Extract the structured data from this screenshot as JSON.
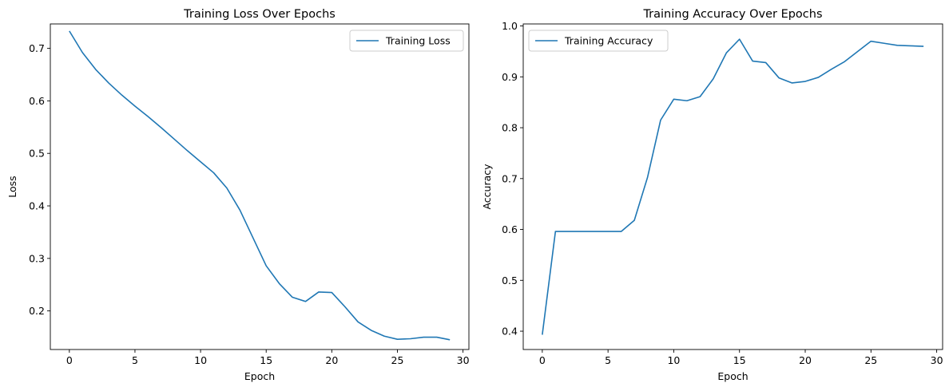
{
  "chart_data": [
    {
      "type": "line",
      "title": "Training Loss Over Epochs",
      "xlabel": "Epoch",
      "ylabel": "Loss",
      "xlim": [
        -1.45,
        30.45
      ],
      "ylim": [
        0.1265,
        0.7465
      ],
      "xticks": [
        0,
        5,
        10,
        15,
        20,
        25,
        30
      ],
      "xtick_labels": [
        "0",
        "5",
        "10",
        "15",
        "20",
        "25",
        "30"
      ],
      "yticks": [
        0.2,
        0.3,
        0.4,
        0.5,
        0.6,
        0.7
      ],
      "ytick_labels": [
        "0.2",
        "0.3",
        "0.4",
        "0.5",
        "0.6",
        "0.7"
      ],
      "grid": false,
      "legend": "upper right",
      "color": "#1f77b4",
      "x": [
        0,
        1,
        2,
        3,
        4,
        5,
        6,
        7,
        8,
        9,
        10,
        11,
        12,
        13,
        14,
        15,
        16,
        17,
        18,
        19,
        20,
        21,
        22,
        23,
        24,
        25,
        26,
        27,
        28,
        29
      ],
      "series": [
        {
          "name": "Training Loss",
          "values": [
            0.733,
            0.692,
            0.66,
            0.634,
            0.611,
            0.59,
            0.57,
            0.549,
            0.527,
            0.505,
            0.484,
            0.463,
            0.434,
            0.392,
            0.339,
            0.286,
            0.252,
            0.226,
            0.218,
            0.236,
            0.235,
            0.208,
            0.179,
            0.163,
            0.152,
            0.146,
            0.147,
            0.15,
            0.15,
            0.145
          ]
        }
      ]
    },
    {
      "type": "line",
      "title": "Training Accuracy Over Epochs",
      "xlabel": "Epoch",
      "ylabel": "Accuracy",
      "xlim": [
        -1.45,
        30.45
      ],
      "ylim": [
        0.364,
        1.004
      ],
      "xticks": [
        0,
        5,
        10,
        15,
        20,
        25,
        30
      ],
      "xtick_labels": [
        "0",
        "5",
        "10",
        "15",
        "20",
        "25",
        "30"
      ],
      "yticks": [
        0.4,
        0.5,
        0.6,
        0.7,
        0.8,
        0.9,
        1.0
      ],
      "ytick_labels": [
        "0.4",
        "0.5",
        "0.6",
        "0.7",
        "0.8",
        "0.9",
        "1.0"
      ],
      "grid": false,
      "legend": "upper left",
      "color": "#1f77b4",
      "x": [
        0,
        1,
        2,
        3,
        4,
        5,
        6,
        7,
        8,
        9,
        10,
        11,
        12,
        13,
        14,
        15,
        16,
        17,
        18,
        19,
        20,
        21,
        22,
        23,
        24,
        25,
        26,
        27,
        28,
        29
      ],
      "series": [
        {
          "name": "Training Accuracy",
          "values": [
            0.393,
            0.596,
            0.596,
            0.596,
            0.596,
            0.596,
            0.596,
            0.618,
            0.702,
            0.815,
            0.856,
            0.853,
            0.861,
            0.896,
            0.947,
            0.974,
            0.931,
            0.928,
            0.898,
            0.888,
            0.891,
            0.899,
            0.915,
            0.93,
            0.95,
            0.97,
            0.966,
            0.962,
            0.961,
            0.96
          ]
        }
      ]
    }
  ]
}
